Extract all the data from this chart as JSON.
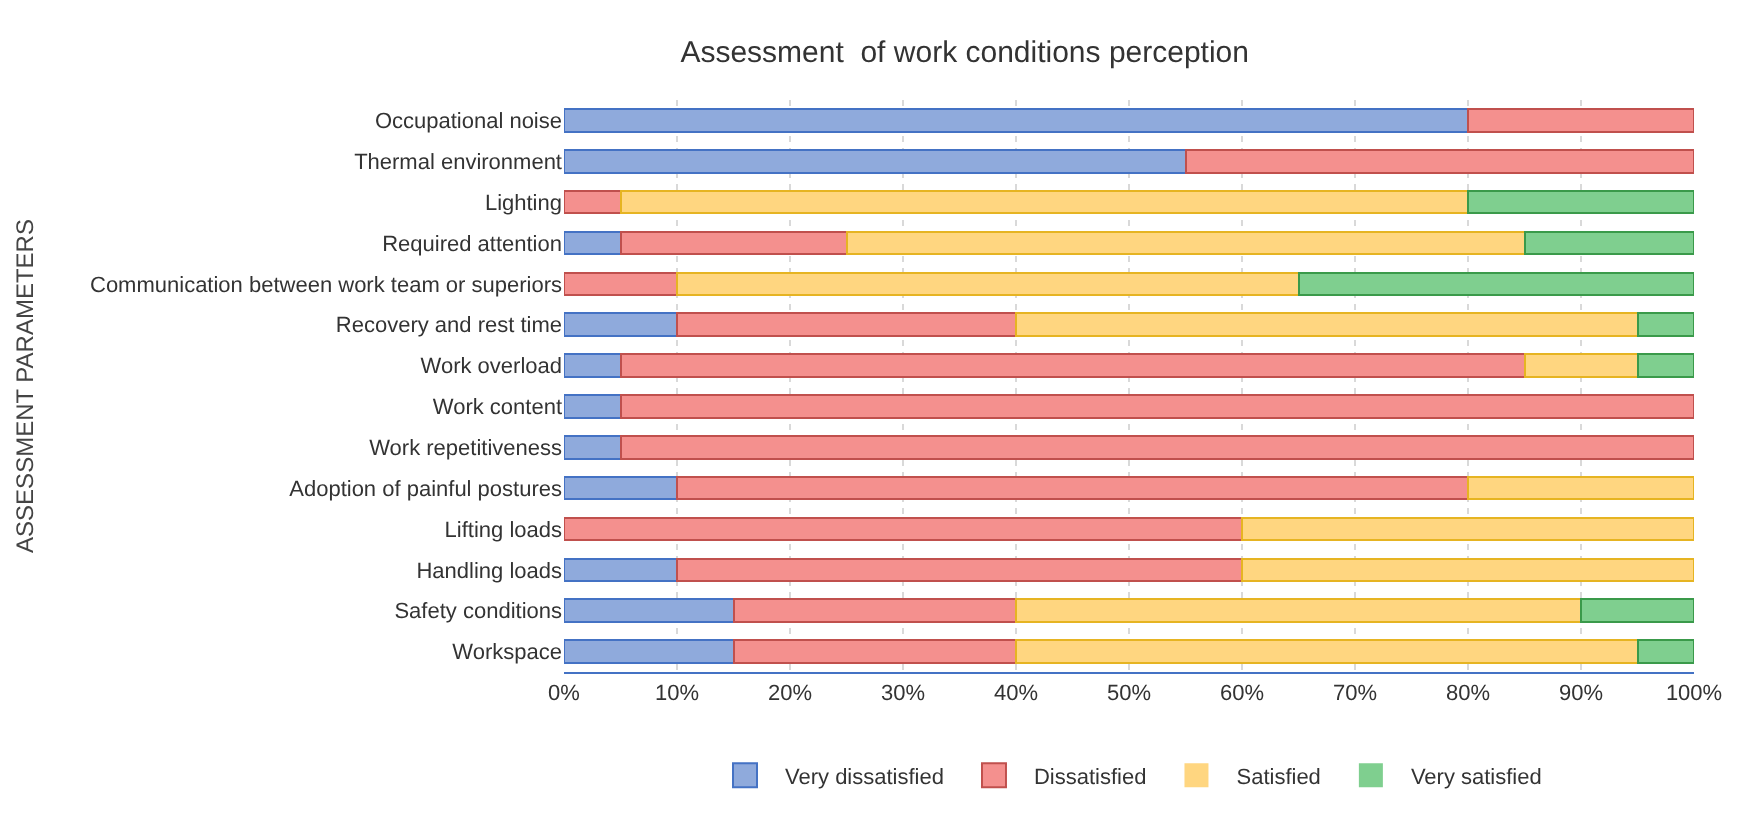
{
  "chart_data": {
    "type": "bar",
    "orientation": "horizontal",
    "stacked": true,
    "title": "Assessment  of work conditions perception",
    "ylabel": "ASSESSMENT PARAMETERS",
    "categories": [
      "Occupational noise",
      "Thermal environment",
      "Lighting",
      "Required attention",
      "Communication between work team or superiors",
      "Recovery and rest time",
      "Work overload",
      "Work content",
      "Work repetitiveness",
      "Adoption of painful postures",
      "Lifting loads",
      "Handling loads",
      "Safety conditions",
      "Workspace"
    ],
    "series": [
      {
        "name": "Very dissatisfied",
        "color": "#8faadc",
        "values": [
          80,
          55,
          0,
          5,
          0,
          10,
          5,
          5,
          5,
          10,
          0,
          10,
          15,
          15
        ]
      },
      {
        "name": "Dissatisfied",
        "color": "#f4908e",
        "values": [
          20,
          45,
          5,
          20,
          10,
          30,
          80,
          95,
          95,
          70,
          60,
          50,
          25,
          25
        ]
      },
      {
        "name": "Satisfied",
        "color": "#ffd680",
        "values": [
          0,
          0,
          75,
          60,
          55,
          55,
          10,
          0,
          0,
          20,
          40,
          40,
          50,
          55
        ]
      },
      {
        "name": "Very satisfied",
        "color": "#7fcf8f",
        "values": [
          0,
          0,
          20,
          15,
          35,
          5,
          5,
          0,
          0,
          0,
          0,
          0,
          10,
          5
        ]
      }
    ],
    "xlim": [
      0,
      100
    ],
    "xticks": [
      {
        "value": 0,
        "label": "0%"
      },
      {
        "value": 10,
        "label": "10%"
      },
      {
        "value": 20,
        "label": "20%"
      },
      {
        "value": 30,
        "label": "30%"
      },
      {
        "value": 40,
        "label": "40%"
      },
      {
        "value": 50,
        "label": "50%"
      },
      {
        "value": 60,
        "label": "60%"
      },
      {
        "value": 70,
        "label": "70%"
      },
      {
        "value": 80,
        "label": "80%"
      },
      {
        "value": 90,
        "label": "90%"
      },
      {
        "value": 100,
        "label": "100%"
      }
    ],
    "grid": "x",
    "legend": "bottom"
  }
}
